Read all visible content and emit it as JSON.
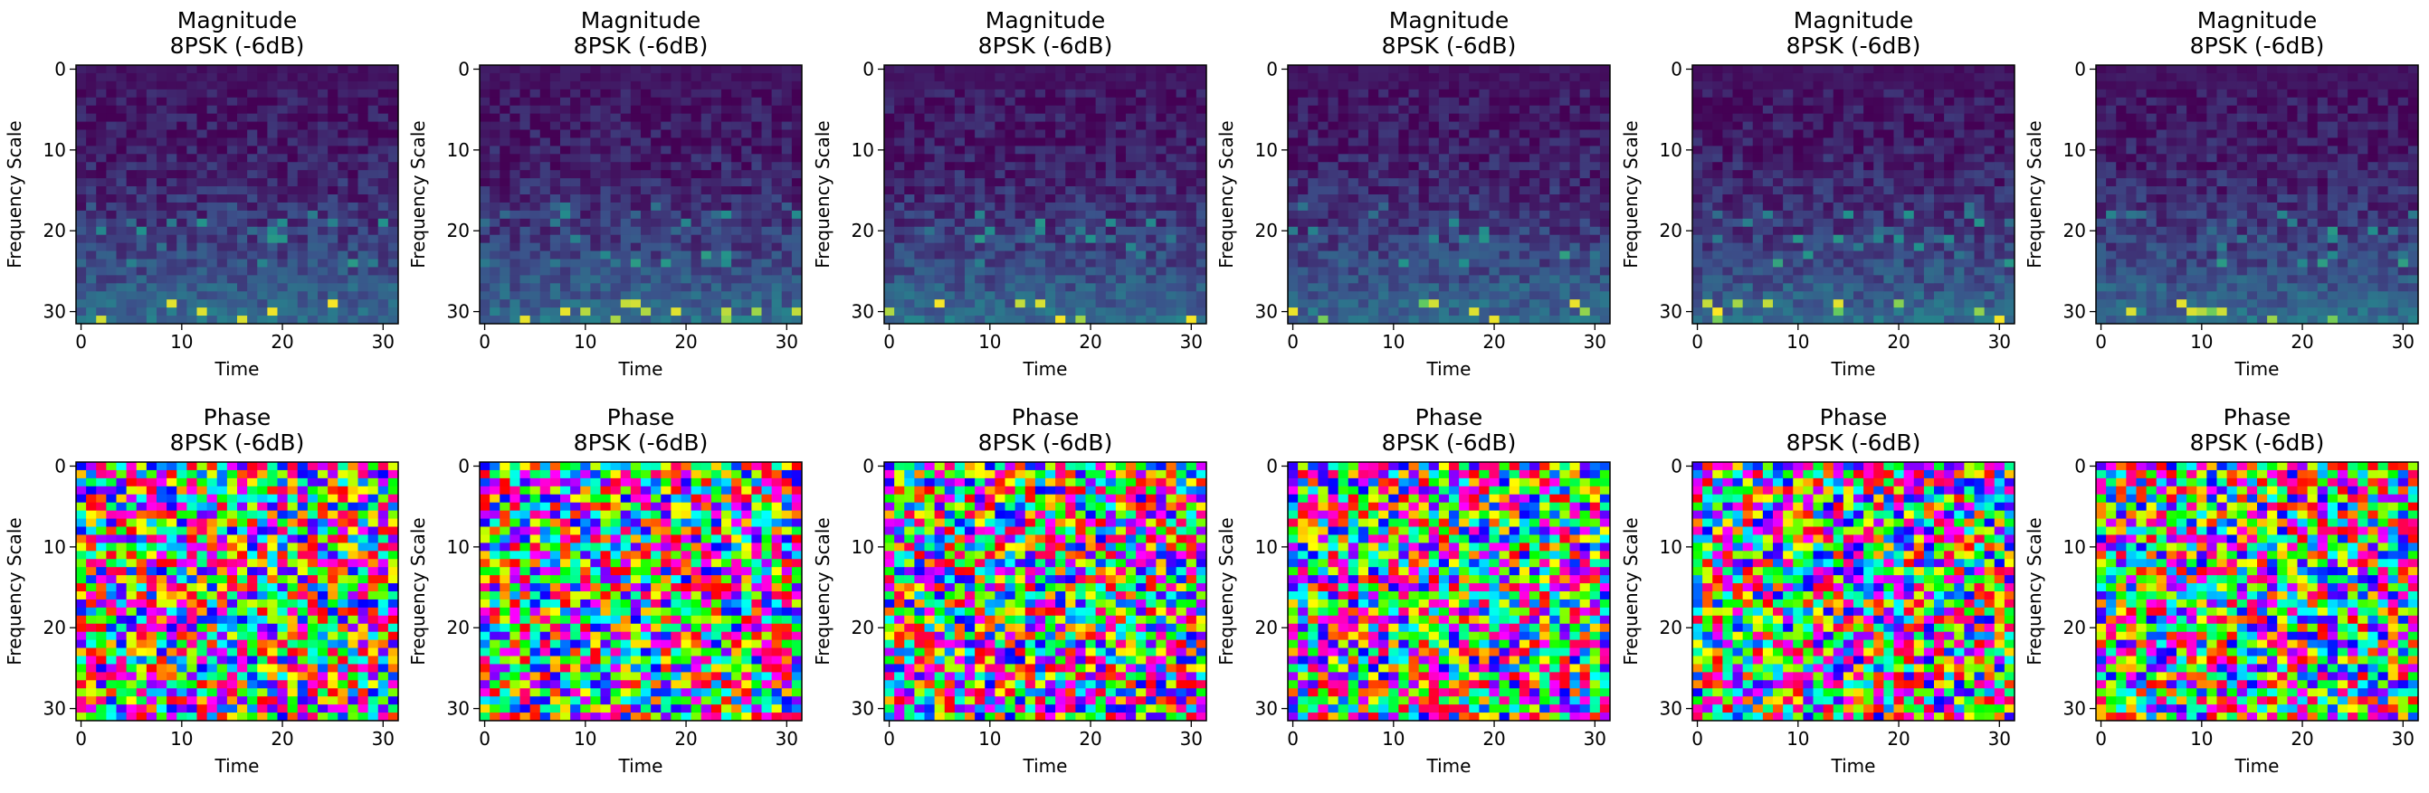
{
  "figure": {
    "rows": [
      {
        "kind": "magnitude",
        "titles": [
          {
            "line1": "Magnitude",
            "line2": "8PSK (-6dB)"
          },
          {
            "line1": "Magnitude",
            "line2": "8PSK (-6dB)"
          },
          {
            "line1": "Magnitude",
            "line2": "8PSK (-6dB)"
          },
          {
            "line1": "Magnitude",
            "line2": "8PSK (-6dB)"
          },
          {
            "line1": "Magnitude",
            "line2": "8PSK (-6dB)"
          },
          {
            "line1": "Magnitude",
            "line2": "8PSK (-6dB)"
          }
        ]
      },
      {
        "kind": "phase",
        "titles": [
          {
            "line1": "Phase",
            "line2": "8PSK (-6dB)"
          },
          {
            "line1": "Phase",
            "line2": "8PSK (-6dB)"
          },
          {
            "line1": "Phase",
            "line2": "8PSK (-6dB)"
          },
          {
            "line1": "Phase",
            "line2": "8PSK (-6dB)"
          },
          {
            "line1": "Phase",
            "line2": "8PSK (-6dB)"
          },
          {
            "line1": "Phase",
            "line2": "8PSK (-6dB)"
          }
        ]
      }
    ],
    "xlabel": "Time",
    "ylabel": "Frequency Scale"
  },
  "chart_data": {
    "type": "heatmap",
    "grid_size": 32,
    "xlim": [
      -0.5,
      31.5
    ],
    "ylim": [
      31.5,
      -0.5
    ],
    "xticks": [
      0,
      10,
      20,
      30
    ],
    "yticks": [
      0,
      10,
      20,
      30
    ],
    "xtick_labels": [
      "0",
      "10",
      "20",
      "30"
    ],
    "ytick_labels": [
      "0",
      "10",
      "20",
      "30"
    ],
    "colormaps": {
      "magnitude": "viridis",
      "phase": "hsv"
    },
    "colors": {
      "viridis_low": "#440154",
      "viridis_mid": "#21918c",
      "viridis_high": "#fde725"
    }
  }
}
